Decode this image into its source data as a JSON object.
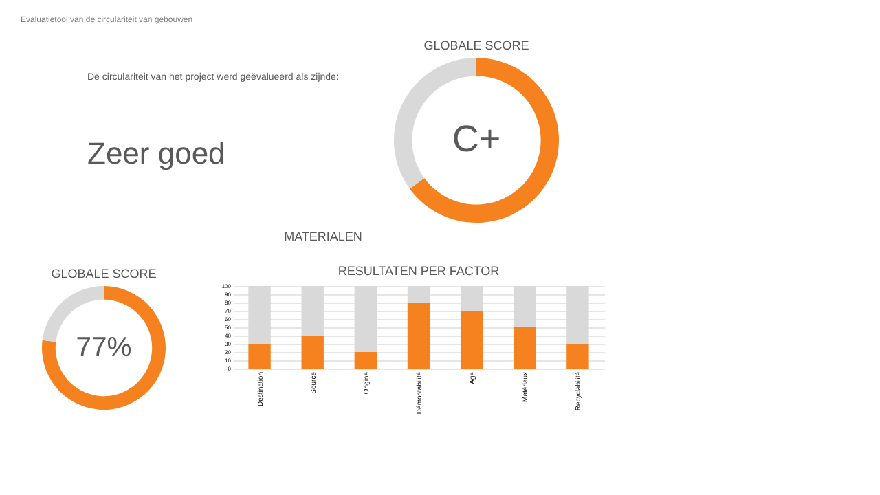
{
  "chart_data": [
    {
      "type": "other",
      "annotations": [
        "Evaluatietool van de circulariteit van gebouwen"
      ]
    },
    {
      "type": "donut",
      "title": "GLOBALE SCORE",
      "categories": [
        null,
        null
      ],
      "values": [
        65,
        35
      ],
      "colors": [
        "#f5821f",
        "#d9d9d9"
      ],
      "annotations": [
        "C+",
        "De circulariteit van het project werd geëvalueerd als zijnde:",
        "Zeer goed"
      ]
    },
    {
      "type": "other",
      "title": "MATERIALEN"
    },
    {
      "type": "donut",
      "title": "GLOBALE SCORE",
      "categories": [
        null,
        null
      ],
      "values": [
        77,
        23
      ],
      "colors": [
        "#f5821f",
        "#d9d9d9"
      ],
      "annotations": [
        "77%"
      ]
    },
    {
      "type": "bar",
      "title": "RESULTATEN PER FACTOR",
      "stacked": true,
      "categories": [
        "Destination",
        "Source",
        "Origine",
        "Démontabilité",
        "Age",
        "Matériaux",
        "Recyclabilité"
      ],
      "series": [
        {
          "color": "#f5821f",
          "values": [
            30,
            40,
            20,
            80,
            70,
            50,
            30
          ]
        },
        {
          "color": "#d9d9d9",
          "values": [
            70,
            60,
            80,
            20,
            30,
            50,
            70
          ]
        }
      ],
      "ylim": [
        0,
        100
      ],
      "yticks": [
        0,
        10,
        20,
        30,
        40,
        50,
        60,
        70,
        80,
        90,
        100
      ],
      "grid": "y"
    }
  ]
}
